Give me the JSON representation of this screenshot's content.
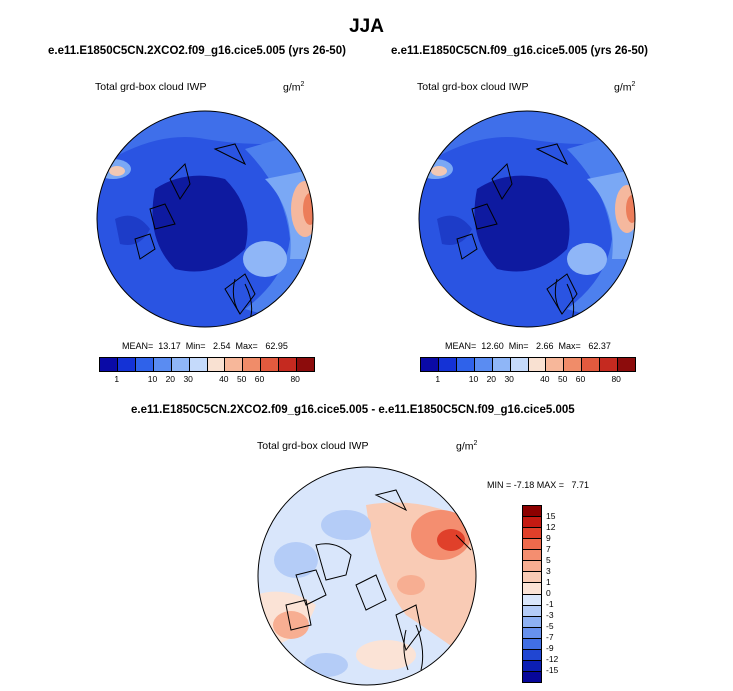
{
  "figure": {
    "main_title": "JJA",
    "panels": [
      {
        "case": "e.e11.E1850C5CN.2XCO2.f09_g16.cice5.005 (yrs 26-50)",
        "variable": "Total grd-box cloud IWP",
        "units_base": "g/m",
        "units_exp": "2",
        "stats": "MEAN=  13.17  Min=   2.54  Max=   62.95"
      },
      {
        "case": "e.e11.E1850C5CN.f09_g16.cice5.005 (yrs 26-50)",
        "variable": "Total grd-box cloud IWP",
        "units_base": "g/m",
        "units_exp": "2",
        "stats": "MEAN=  12.60  Min=   2.66  Max=   62.37"
      }
    ],
    "difference": {
      "title": "e.e11.E1850C5CN.2XCO2.f09_g16.cice5.005 - e.e11.E1850C5CN.f09_g16.cice5.005",
      "variable": "Total grd-box cloud IWP",
      "units_base": "g/m",
      "units_exp": "2",
      "stats": "MIN = -7.18 MAX =   7.71"
    },
    "abs_colorbar": {
      "labels": [
        "1",
        "10",
        "20",
        "30",
        "40",
        "50",
        "60",
        "80"
      ],
      "colors": [
        "#0a0aa6",
        "#1432d6",
        "#2f62ea",
        "#5a8cf2",
        "#8fb6f7",
        "#c5dafb",
        "#f9e1d2",
        "#f7b79a",
        "#f08c69",
        "#e25a3e",
        "#c52a20",
        "#8c0c0c"
      ]
    },
    "diff_colorbar": {
      "labels": [
        "15",
        "12",
        "9",
        "7",
        "5",
        "3",
        "1",
        "0",
        "-1",
        "-3",
        "-5",
        "-7",
        "-9",
        "-12",
        "-15"
      ],
      "colors": [
        "#8c0000",
        "#c41a12",
        "#e0402a",
        "#ee6a4c",
        "#f48e70",
        "#f7ae92",
        "#f9cbb5",
        "#fbe3d6",
        "#d9e6fb",
        "#b4ccf7",
        "#8eb1f3",
        "#6791ee",
        "#416fe4",
        "#2046d2",
        "#0c1fb4",
        "#07079a"
      ]
    }
  }
}
